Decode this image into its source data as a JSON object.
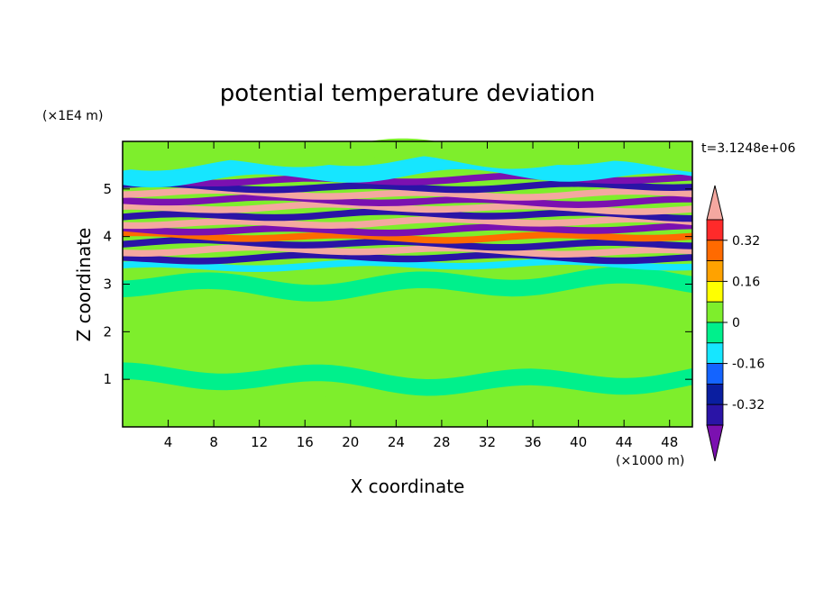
{
  "chart_data": {
    "type": "heatmap",
    "title": "potential temperature deviation",
    "xlabel": "X coordinate",
    "ylabel": "Z coordinate",
    "x_unit_label": "(×1000 m)",
    "y_unit_label": "(×1E4 m)",
    "time_label": "t=3.1248e+06",
    "xlim": [
      0,
      50
    ],
    "ylim": [
      0,
      6
    ],
    "x_ticks": [
      "4",
      "8",
      "12",
      "16",
      "20",
      "24",
      "28",
      "32",
      "36",
      "40",
      "44",
      "48"
    ],
    "y_ticks": [
      "1",
      "2",
      "3",
      "4",
      "5"
    ],
    "colorbar": {
      "levels": [
        -0.48,
        -0.4,
        -0.32,
        -0.24,
        -0.16,
        -0.08,
        0,
        0.08,
        0.16,
        0.24,
        0.32,
        0.4,
        0.48
      ],
      "colors": [
        "#7b10b0",
        "#2a14a6",
        "#0a1ea0",
        "#1464ff",
        "#16e6ff",
        "#00f08c",
        "#7eee2c",
        "#ffff00",
        "#ffa200",
        "#ff6a00",
        "#ff2a2a",
        "#f4a8a0"
      ],
      "labels": [
        "0.32",
        "0.16",
        "0",
        "-0.16",
        "-0.32"
      ],
      "extend": "both"
    },
    "background_value": 0.03,
    "layers": [
      {
        "z": 0.4,
        "value": 0.03
      },
      {
        "z": 1.0,
        "value": -0.05
      },
      {
        "z": 2.0,
        "value": 0.04
      },
      {
        "z": 3.0,
        "value": -0.03
      },
      {
        "z": 3.4,
        "value": -0.1
      },
      {
        "z": 3.55,
        "value": -0.4
      },
      {
        "z": 3.7,
        "value": 0.45
      },
      {
        "z": 3.85,
        "value": -0.35
      },
      {
        "z": 4.0,
        "value": 0.3
      },
      {
        "z": 4.15,
        "value": -0.45
      },
      {
        "z": 4.3,
        "value": 0.45
      },
      {
        "z": 4.45,
        "value": -0.4
      },
      {
        "z": 4.6,
        "value": 0.4
      },
      {
        "z": 4.75,
        "value": -0.42
      },
      {
        "z": 4.9,
        "value": 0.45
      },
      {
        "z": 5.05,
        "value": -0.38
      },
      {
        "z": 5.2,
        "value": -0.45
      },
      {
        "z": 5.4,
        "value": -0.1
      },
      {
        "z": 5.7,
        "value": 0.03
      }
    ]
  }
}
